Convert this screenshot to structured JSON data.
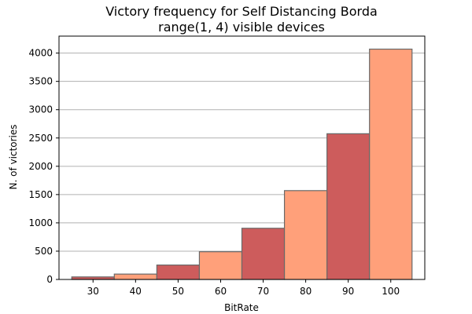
{
  "chart_data": {
    "type": "bar",
    "title_line1": "Victory frequency for Self Distancing Borda",
    "title_line2": "range(1, 4) visible devices",
    "xlabel": "BitRate",
    "ylabel": "N. of victories",
    "categories": [
      "30",
      "40",
      "50",
      "60",
      "70",
      "80",
      "90",
      "100"
    ],
    "x": [
      30,
      40,
      50,
      60,
      70,
      80,
      90,
      100
    ],
    "values": [
      45,
      95,
      255,
      490,
      905,
      1570,
      2575,
      4070
    ],
    "bar_width": 10,
    "xlim": [
      22,
      108
    ],
    "ylim": [
      0,
      4300
    ],
    "yticks": [
      0,
      500,
      1000,
      1500,
      2000,
      2500,
      3000,
      3500,
      4000
    ],
    "grid": "y",
    "colors": [
      "#cd5c5c",
      "#ffa07a"
    ],
    "edge_color": "#696969",
    "grid_color": "#b0b0b0"
  }
}
